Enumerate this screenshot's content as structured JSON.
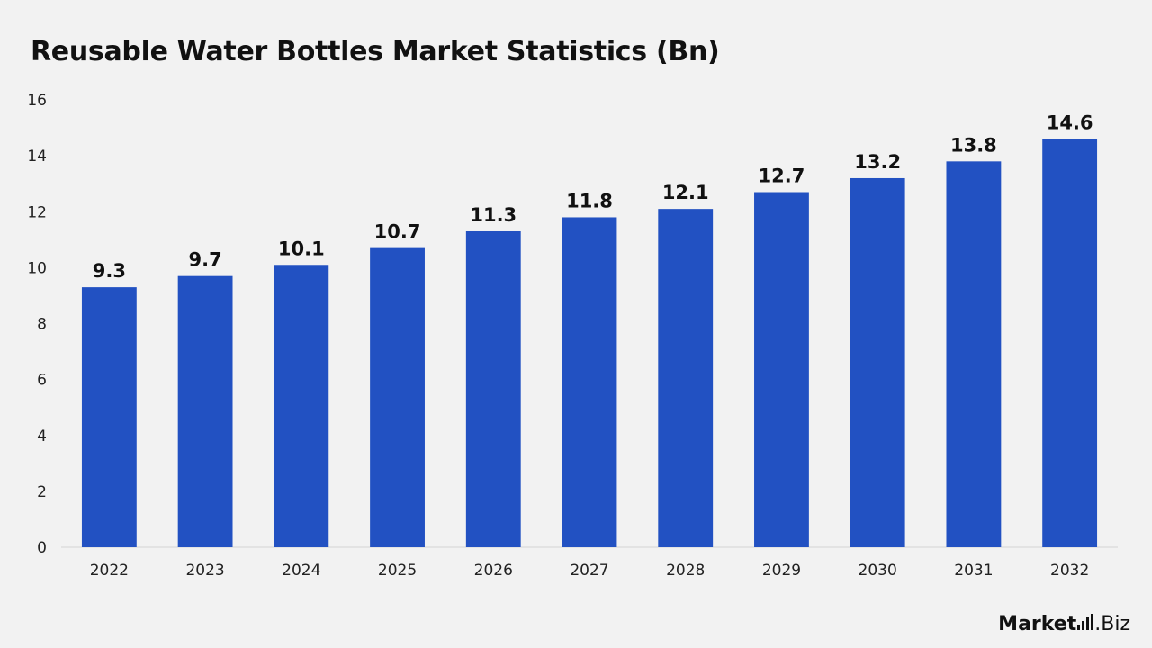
{
  "chart_data": {
    "type": "bar",
    "title": "Reusable Water Bottles Market Statistics (Bn)",
    "categories": [
      "2022",
      "2023",
      "2024",
      "2025",
      "2026",
      "2027",
      "2028",
      "2029",
      "2030",
      "2031",
      "2032"
    ],
    "values": [
      9.3,
      9.7,
      10.1,
      10.7,
      11.3,
      11.8,
      12.1,
      12.7,
      13.2,
      13.8,
      14.6
    ],
    "value_labels": [
      "9.3",
      "9.7",
      "10.1",
      "10.7",
      "11.3",
      "11.8",
      "12.1",
      "12.7",
      "13.2",
      "13.8",
      "14.6"
    ],
    "xlabel": "",
    "ylabel": "",
    "ylim": [
      0,
      16
    ],
    "yticks": [
      "0",
      "2",
      "4",
      "6",
      "8",
      "10",
      "12",
      "14",
      "16"
    ],
    "grid": false,
    "legend": "none",
    "bar_color": "#2251c2"
  },
  "branding": {
    "logo_text_prefix": "Market",
    "logo_text_suffix": ".Biz"
  }
}
